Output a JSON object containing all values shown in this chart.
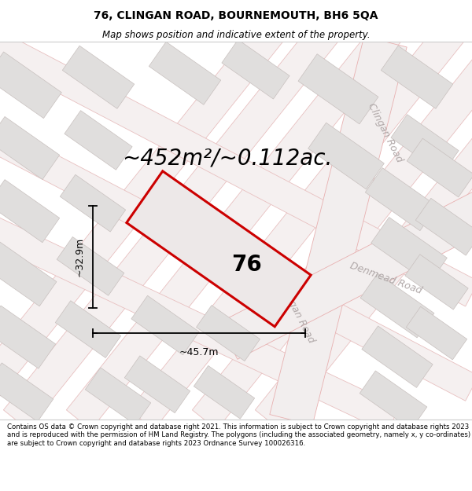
{
  "title": "76, CLINGAN ROAD, BOURNEMOUTH, BH6 5QA",
  "subtitle": "Map shows position and indicative extent of the property.",
  "footer": "Contains OS data © Crown copyright and database right 2021. This information is subject to Crown copyright and database rights 2023 and is reproduced with the permission of HM Land Registry. The polygons (including the associated geometry, namely x, y co-ordinates) are subject to Crown copyright and database rights 2023 Ordnance Survey 100026316.",
  "area_label": "~452m²/~0.112ac.",
  "width_label": "~45.7m",
  "height_label": "~32.9m",
  "plot_number": "76",
  "map_bg": "#f7f6f4",
  "road_outline_color": "#e8b0b0",
  "road_fill": "#f2eeee",
  "building_fill": "#e0dedd",
  "building_stroke": "#c8c0be",
  "highlight_color": "#cc0000",
  "highlight_fill": "#ede8e8",
  "road_label_color": "#b0a8a8",
  "title_fontsize": 10,
  "subtitle_fontsize": 8.5,
  "area_fontsize": 20,
  "label_fontsize": 9,
  "road_label_fontsize": 8,
  "plot_fontsize": 20
}
